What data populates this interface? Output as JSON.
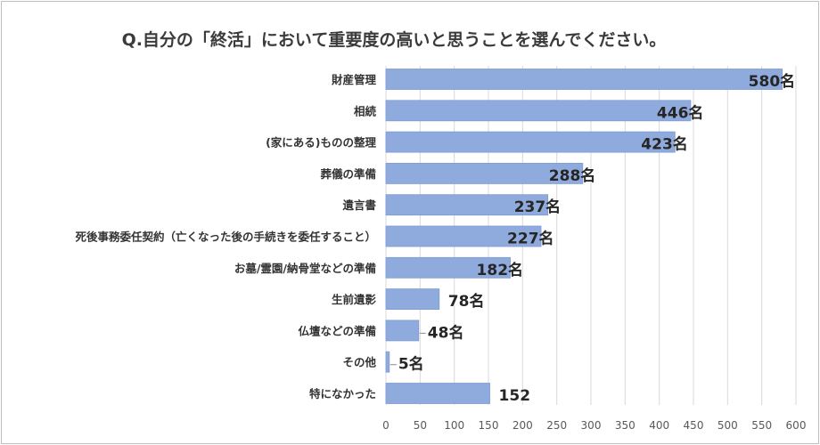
{
  "chart_data": {
    "type": "bar",
    "orientation": "horizontal",
    "title": "Q.自分の「終活」において重要度の高いと思うことを選んでください。",
    "categories": [
      "財産管理",
      "相続",
      "(家にある)ものの整理",
      "葬儀の準備",
      "遺言書",
      "死後事務委任契約（亡くなった後の手続きを委任すること）",
      "お墓/霊園/納骨堂などの準備",
      "生前遺影",
      "仏壇などの準備",
      "その他",
      "特になかった"
    ],
    "values": [
      580,
      446,
      423,
      288,
      237,
      227,
      182,
      78,
      48,
      5,
      152
    ],
    "data_labels": [
      "580名",
      "446名",
      "423名",
      "288名",
      "237名",
      "227名",
      "182名",
      "78名",
      "48名",
      "5名",
      "152"
    ],
    "xlim": [
      0,
      600
    ],
    "xticks": [
      0,
      50,
      100,
      150,
      200,
      250,
      300,
      350,
      400,
      450,
      500,
      550,
      600
    ],
    "xtick_labels": [
      "0",
      "50",
      "100",
      "150",
      "200",
      "250",
      "300",
      "350",
      "400",
      "450",
      "500",
      "550",
      "600"
    ],
    "grid": true,
    "legend": "none",
    "xlabel": "",
    "ylabel": "",
    "bar_color": "#8faadc",
    "bar_edge_color": "#7f9bd1",
    "grid_color": "#d9d9d9"
  }
}
